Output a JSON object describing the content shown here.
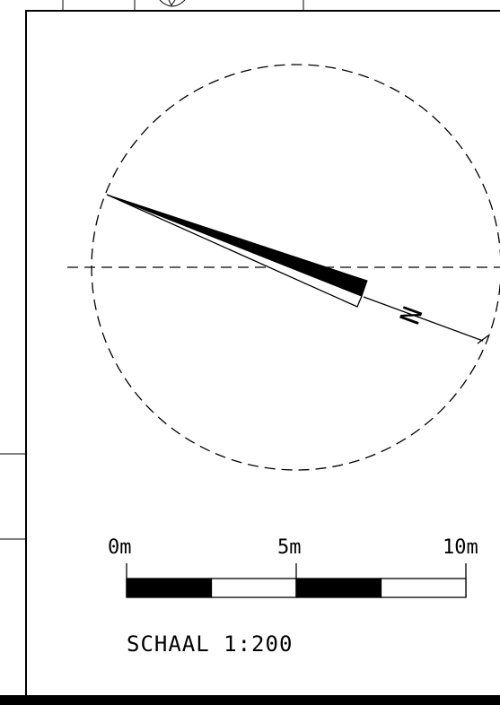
{
  "north_arrow": {
    "letter": "N"
  },
  "scale_bar": {
    "labels": [
      "0m",
      "5m",
      "10m"
    ],
    "title": "SCHAAL 1:200",
    "colors": {
      "filled": "#000000",
      "empty": "#ffffff"
    }
  }
}
